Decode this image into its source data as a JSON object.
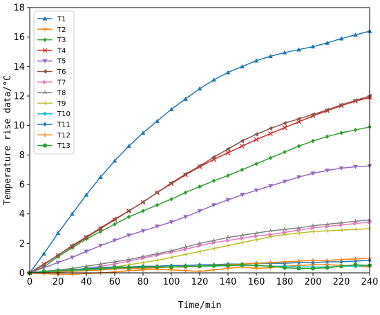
{
  "chart_data": {
    "type": "line",
    "title": "",
    "xlabel": "Time/min",
    "ylabel": "Temperature rise data/°C",
    "xlim": [
      0,
      240
    ],
    "ylim": [
      0,
      18
    ],
    "xticks": [
      0,
      20,
      40,
      60,
      80,
      100,
      120,
      140,
      160,
      180,
      200,
      220,
      240
    ],
    "yticks": [
      0,
      2,
      4,
      6,
      8,
      10,
      12,
      14,
      16,
      18
    ],
    "grid": false,
    "legend": "top-left",
    "x": [
      0,
      10,
      20,
      30,
      40,
      50,
      60,
      70,
      80,
      90,
      100,
      110,
      120,
      130,
      140,
      150,
      160,
      170,
      180,
      190,
      200,
      210,
      220,
      230,
      240
    ],
    "series": [
      {
        "name": "T1",
        "color": "#1f77b4",
        "marker": "triangle",
        "values": [
          0,
          1.3,
          2.7,
          4.0,
          5.3,
          6.5,
          7.6,
          8.6,
          9.5,
          10.3,
          11.1,
          11.8,
          12.5,
          13.1,
          13.6,
          14.0,
          14.4,
          14.7,
          14.95,
          15.15,
          15.35,
          15.6,
          15.9,
          16.15,
          16.4
        ]
      },
      {
        "name": "T2",
        "color": "#ff7f0e",
        "marker": "tri-down",
        "values": [
          0,
          -0.05,
          -0.1,
          -0.1,
          -0.05,
          0.0,
          0.05,
          0.15,
          0.2,
          0.25,
          0.2,
          0.15,
          0.1,
          0.2,
          0.3,
          0.4,
          0.3,
          0.35,
          0.45,
          0.5,
          0.55,
          0.55,
          0.5,
          0.45,
          0.4
        ]
      },
      {
        "name": "T3",
        "color": "#2ca02c",
        "marker": "diamond",
        "values": [
          0,
          0.4,
          1.1,
          1.7,
          2.3,
          2.8,
          3.3,
          3.8,
          4.2,
          4.6,
          5.0,
          5.45,
          5.85,
          6.25,
          6.6,
          7.0,
          7.4,
          7.8,
          8.2,
          8.6,
          8.95,
          9.25,
          9.5,
          9.7,
          9.9
        ]
      },
      {
        "name": "T4",
        "color": "#d62728",
        "marker": "x",
        "values": [
          0,
          0.6,
          1.2,
          1.8,
          2.4,
          3.0,
          3.6,
          4.2,
          4.8,
          5.45,
          6.05,
          6.65,
          7.2,
          7.7,
          8.15,
          8.6,
          9.05,
          9.45,
          9.85,
          10.25,
          10.65,
          11.0,
          11.35,
          11.65,
          11.9
        ]
      },
      {
        "name": "T5",
        "color": "#9467bd",
        "marker": "triangle-down",
        "values": [
          0,
          0.35,
          0.7,
          1.05,
          1.45,
          1.85,
          2.2,
          2.55,
          2.85,
          3.15,
          3.45,
          3.8,
          4.2,
          4.6,
          4.95,
          5.3,
          5.6,
          5.9,
          6.2,
          6.5,
          6.75,
          6.95,
          7.1,
          7.2,
          7.25
        ]
      },
      {
        "name": "T6",
        "color": "#8c564b",
        "marker": "triangle-left",
        "values": [
          0,
          0.55,
          1.2,
          1.85,
          2.45,
          3.05,
          3.65,
          4.2,
          4.8,
          5.45,
          6.1,
          6.7,
          7.25,
          7.85,
          8.4,
          8.95,
          9.4,
          9.8,
          10.15,
          10.45,
          10.75,
          11.05,
          11.4,
          11.7,
          12.0
        ]
      },
      {
        "name": "T7",
        "color": "#e377c2",
        "marker": "triangle-right",
        "values": [
          0,
          0.05,
          0.1,
          0.2,
          0.3,
          0.45,
          0.6,
          0.8,
          1.0,
          1.2,
          1.4,
          1.6,
          1.85,
          2.05,
          2.2,
          2.35,
          2.5,
          2.6,
          2.75,
          2.9,
          3.05,
          3.15,
          3.25,
          3.35,
          3.45
        ]
      },
      {
        "name": "T8",
        "color": "#7f7f7f",
        "marker": "tri-up",
        "values": [
          0,
          0.1,
          0.2,
          0.3,
          0.45,
          0.6,
          0.75,
          0.9,
          1.1,
          1.3,
          1.5,
          1.75,
          2.0,
          2.2,
          2.4,
          2.55,
          2.7,
          2.85,
          2.95,
          3.05,
          3.2,
          3.3,
          3.4,
          3.5,
          3.6
        ]
      },
      {
        "name": "T9",
        "color": "#bcbd22",
        "marker": "tri-left",
        "values": [
          0,
          0.02,
          0.05,
          0.1,
          0.2,
          0.3,
          0.4,
          0.55,
          0.7,
          0.85,
          1.05,
          1.25,
          1.45,
          1.65,
          1.85,
          2.05,
          2.25,
          2.45,
          2.6,
          2.7,
          2.8,
          2.85,
          2.9,
          2.95,
          3.0
        ]
      },
      {
        "name": "T10",
        "color": "#17becf",
        "marker": "circle",
        "values": [
          0,
          0.05,
          0.1,
          0.15,
          0.2,
          0.25,
          0.3,
          0.3,
          0.35,
          0.35,
          0.4,
          0.4,
          0.45,
          0.45,
          0.5,
          0.5,
          0.5,
          0.45,
          0.45,
          0.4,
          0.4,
          0.4,
          0.45,
          0.45,
          0.5
        ]
      },
      {
        "name": "T11",
        "color": "#1f77b4",
        "marker": "diamond",
        "values": [
          0,
          0.1,
          0.15,
          0.2,
          0.3,
          0.35,
          0.4,
          0.4,
          0.45,
          0.45,
          0.5,
          0.5,
          0.55,
          0.55,
          0.6,
          0.6,
          0.65,
          0.65,
          0.65,
          0.7,
          0.7,
          0.75,
          0.75,
          0.8,
          0.85
        ]
      },
      {
        "name": "T12",
        "color": "#ff7f0e",
        "marker": "plus",
        "values": [
          0,
          0.0,
          0.05,
          0.1,
          0.15,
          0.2,
          0.25,
          0.3,
          0.3,
          0.35,
          0.4,
          0.4,
          0.45,
          0.5,
          0.55,
          0.6,
          0.65,
          0.7,
          0.75,
          0.8,
          0.85,
          0.85,
          0.9,
          0.95,
          1.0
        ]
      },
      {
        "name": "T13",
        "color": "#2ca02c",
        "marker": "hexagon",
        "values": [
          0,
          0.1,
          0.15,
          0.2,
          0.25,
          0.3,
          0.35,
          0.35,
          0.4,
          0.4,
          0.4,
          0.45,
          0.45,
          0.5,
          0.5,
          0.55,
          0.5,
          0.45,
          0.35,
          0.3,
          0.3,
          0.35,
          0.45,
          0.55,
          0.5
        ]
      }
    ]
  }
}
